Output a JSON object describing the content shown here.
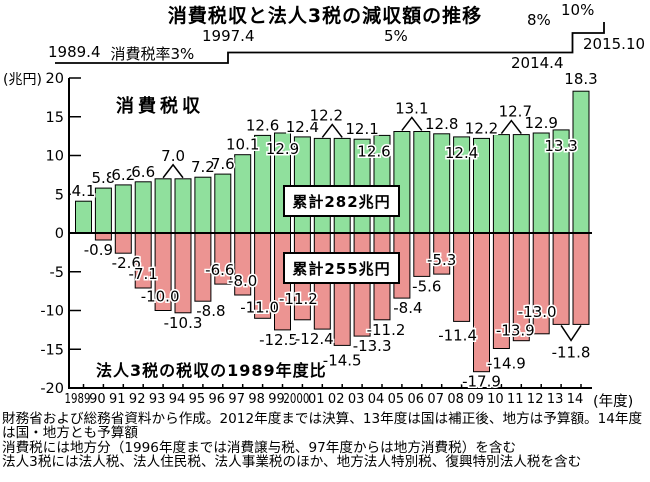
{
  "tax_rate_timeline": {
    "start_date": "1989.4",
    "rate3_label": "消費税率3%",
    "step1_date": "1997.4",
    "rate5_label": "5%",
    "rate8_label": "8%",
    "rate10_label": "10%",
    "step2_date": "2014.4",
    "end_date": "2015.10"
  },
  "chart_data": {
    "type": "bar",
    "title": "消費税収と法人3税の減収額の推移",
    "y_axis_unit": "(兆円)",
    "x_axis_unit": "(年度)",
    "ylim": [
      -20,
      20
    ],
    "yticks": [
      20,
      15,
      10,
      5,
      0,
      -5,
      -10,
      -15,
      -20
    ],
    "grid": false,
    "legend_position": "none",
    "categories": [
      "1989",
      "90",
      "91",
      "92",
      "93",
      "94",
      "95",
      "96",
      "97",
      "98",
      "99",
      "2000",
      "01",
      "02",
      "03",
      "04",
      "05",
      "06",
      "07",
      "08",
      "09",
      "10",
      "11",
      "12",
      "13",
      "14"
    ],
    "annotations": {
      "series1_label": "消費税収",
      "series2_label": "法人3税の税収の1989年度比"
    },
    "series": [
      {
        "name": "消費税収",
        "color": "#90e09d",
        "cumulative_label": "累計282兆円",
        "values": [
          4.1,
          5.8,
          6.2,
          6.6,
          7.0,
          7.0,
          7.2,
          7.6,
          10.1,
          12.6,
          12.9,
          12.4,
          12.2,
          12.2,
          12.1,
          12.6,
          13.1,
          13.1,
          12.8,
          12.4,
          12.2,
          12.7,
          12.7,
          12.9,
          13.3,
          18.3
        ],
        "labels": [
          {
            "text": "4.1",
            "mode": "above"
          },
          {
            "text": "5.8",
            "mode": "above"
          },
          {
            "text": "6.2",
            "mode": "above"
          },
          {
            "text": "6.6",
            "mode": "above"
          },
          {
            "text": "7.0",
            "mode": "caret",
            "span": 2
          },
          null,
          {
            "text": "7.2",
            "mode": "above"
          },
          {
            "text": "7.6",
            "mode": "above"
          },
          {
            "text": "10.1",
            "mode": "above"
          },
          {
            "text": "12.6",
            "mode": "above"
          },
          {
            "text": "12.9",
            "mode": "inside"
          },
          {
            "text": "12.4",
            "mode": "above"
          },
          {
            "text": "12.2",
            "mode": "caret",
            "span": 2,
            "dx": -6
          },
          null,
          {
            "text": "12.1",
            "mode": "above"
          },
          {
            "text": "12.6",
            "mode": "inside",
            "dx": -8
          },
          {
            "text": "13.1",
            "mode": "caret",
            "span": 2
          },
          null,
          {
            "text": "12.8",
            "mode": "above"
          },
          {
            "text": "12.4",
            "mode": "inside"
          },
          {
            "text": "12.2",
            "mode": "above"
          },
          {
            "text": "12.7",
            "mode": "caret",
            "span": 2,
            "dx": 4
          },
          null,
          {
            "text": "12.9",
            "mode": "above"
          },
          {
            "text": "13.3",
            "mode": "inside"
          },
          {
            "text": "18.3",
            "mode": "above",
            "dy": -2
          }
        ]
      },
      {
        "name": "法人3税の税収の1989年度比",
        "color": "#ec9492",
        "cumulative_label": "累計255兆円",
        "values": [
          0,
          -0.9,
          -2.6,
          -7.1,
          -10.0,
          -10.3,
          -8.8,
          -6.6,
          -8.0,
          -11.0,
          -12.5,
          -11.2,
          -12.4,
          -14.5,
          -13.3,
          -11.2,
          -8.4,
          -5.6,
          -5.3,
          -11.4,
          -17.9,
          -14.9,
          -13.9,
          -13.0,
          -11.8,
          -11.8
        ],
        "labels": [
          null,
          {
            "text": "-0.9",
            "mode": "below",
            "dx": -5
          },
          {
            "text": "-2.6",
            "mode": "below",
            "dx": 3
          },
          {
            "text": "-7.1",
            "mode": "inside"
          },
          {
            "text": "-10.0",
            "mode": "inside",
            "dx": -3
          },
          {
            "text": "-10.3",
            "mode": "below"
          },
          {
            "text": "-8.8",
            "mode": "below",
            "dx": 8
          },
          {
            "text": "-6.6",
            "mode": "inside",
            "dx": -3
          },
          {
            "text": "-8.0",
            "mode": "inside"
          },
          {
            "text": "-11.0",
            "mode": "inside",
            "dx": -3,
            "dy": 3
          },
          {
            "text": "-12.5",
            "mode": "below",
            "dx": -4
          },
          {
            "text": "-11.2",
            "mode": "inside",
            "dx": -4,
            "dy": -7
          },
          {
            "text": "-12.4",
            "mode": "below",
            "dx": -8
          },
          {
            "text": "-14.5",
            "mode": "below",
            "dy": 5
          },
          {
            "text": "-13.3",
            "mode": "below",
            "dx": 10
          },
          {
            "text": "-11.2",
            "mode": "below",
            "dx": 4
          },
          {
            "text": "-8.4",
            "mode": "below",
            "dx": 6
          },
          {
            "text": "-5.6",
            "mode": "below",
            "dx": 5
          },
          {
            "text": "-5.3",
            "mode": "inside"
          },
          {
            "text": "-11.4",
            "mode": "below",
            "dx": -4,
            "dy": 4
          },
          {
            "text": "-17.9",
            "mode": "below"
          },
          {
            "text": "-14.9",
            "mode": "below",
            "dx": 5,
            "dy": 5
          },
          {
            "text": "-13.9",
            "mode": "inside",
            "dx": -6,
            "dy": 4
          },
          {
            "text": "-13.0",
            "mode": "inside",
            "dx": -4,
            "dy": -8
          },
          {
            "text": "-11.8",
            "mode": "vcaret",
            "span": 2
          },
          null
        ]
      }
    ]
  },
  "footnotes": [
    "財務省および総務省資料から作成。2012年度までは決算、13年度は国は補正後、地方は予算額。14年度",
    "は国・地方とも予算額",
    "消費税には地方分（1996年度までは消費譲与税、97年度からは地方消費税）を含む",
    "法人3税には法人税、法人住民税、法人事業税のほか、地方法人特別税、復興特別法人税を含む"
  ]
}
